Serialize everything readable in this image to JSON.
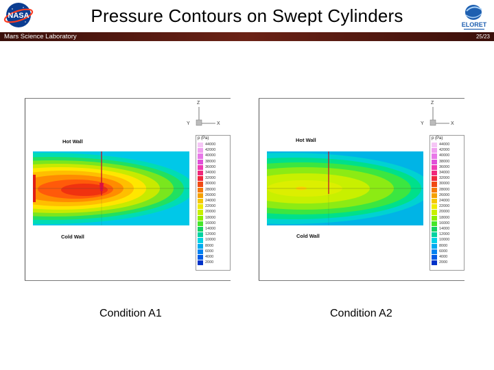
{
  "header": {
    "title": "Pressure Contours on Swept Cylinders",
    "left_label": "Mars Science Laboratory",
    "page_number": "25/23",
    "bar_color": "#5a1a12",
    "left_logo": "nasa-logo",
    "right_logo": "eloret-logo",
    "right_logo_text": "ELORET"
  },
  "legend": {
    "title": "p (Pa)",
    "values": [
      "44000",
      "42000",
      "40000",
      "38000",
      "36000",
      "34000",
      "32000",
      "30000",
      "28000",
      "26000",
      "24000",
      "22000",
      "20000",
      "18000",
      "16000",
      "14000",
      "12000",
      "10000",
      "8000",
      "6000",
      "4000",
      "2000"
    ]
  },
  "panels": [
    {
      "caption": "Condition A1",
      "hot_wall_label": "Hot Wall",
      "cold_wall_label": "Cold Wall",
      "axis_z": "Z",
      "axis_y": "Y",
      "axis_x": "X"
    },
    {
      "caption": "Condition A2",
      "hot_wall_label": "Hot Wall",
      "cold_wall_label": "Cold Wall",
      "axis_z": "Z",
      "axis_y": "Y",
      "axis_x": "X"
    }
  ]
}
